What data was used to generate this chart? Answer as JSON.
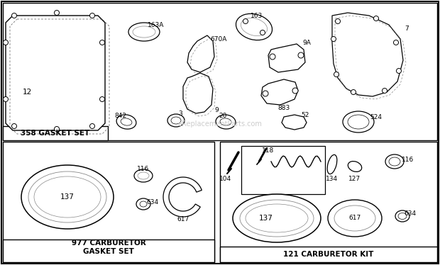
{
  "bg_color": "#ffffff",
  "gasket_set_label": "358 GASKET SET",
  "carb_gasket_label": "977 CARBURETOR\nGASKET SET",
  "carb_kit_label": "121 CARBURETOR KIT",
  "fig_w": 6.2,
  "fig_h": 3.74,
  "dpi": 100
}
